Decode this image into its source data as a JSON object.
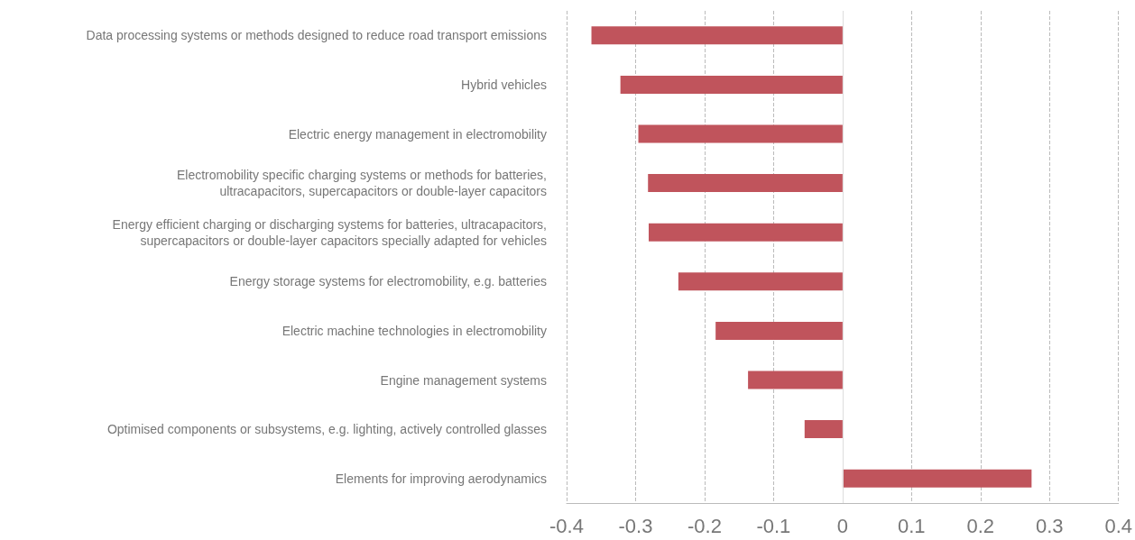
{
  "chart_data": {
    "type": "bar",
    "orientation": "horizontal",
    "categories": [
      "Data processing systems or methods designed to reduce road transport emissions",
      "Hybrid vehicles",
      "Electric energy management in electromobility",
      "Electromobility specific charging systems or methods for batteries,\nultracapacitors, supercapacitors or double-layer capacitors",
      "Energy efficient charging or discharging systems for batteries, ultracapacitors,\nsupercapacitors or double-layer capacitors specially adapted for vehicles",
      "Energy storage systems for electromobility, e.g. batteries",
      "Electric machine technologies in electromobility",
      "Engine management systems",
      "Optimised components or subsystems, e.g. lighting, actively controlled glasses",
      "Elements for improving aerodynamics"
    ],
    "values": [
      -0.364,
      -0.322,
      -0.296,
      -0.282,
      -0.281,
      -0.238,
      -0.184,
      -0.137,
      -0.055,
      0.274
    ],
    "color": "#c0545c",
    "xlim": [
      -0.4,
      0.4
    ],
    "xticks": [
      -0.4,
      -0.3,
      -0.2,
      -0.1,
      0,
      0.1,
      0.2,
      0.3,
      0.4
    ],
    "grid": "x"
  }
}
